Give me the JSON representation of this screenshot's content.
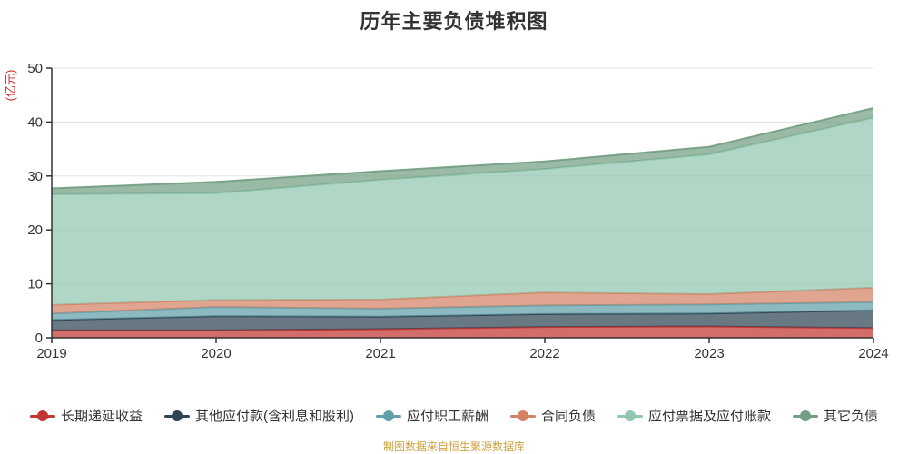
{
  "title": "历年主要负债堆积图",
  "footer": "制图数据来自恒生聚源数据库",
  "colors": {
    "axis": "#333333",
    "tick_label": "#333333",
    "grid": "#e0e0e0",
    "y_axis_name": "#d03030",
    "footer_text": "#cfa342",
    "background": "#ffffff"
  },
  "chart_data": {
    "type": "area",
    "stacked": true,
    "title": "历年主要负债堆积图",
    "x": [
      2019,
      2020,
      2021,
      2022,
      2023,
      2024
    ],
    "xtick_labels": [
      "2019",
      "2020",
      "2021",
      "2022",
      "2023",
      "2024"
    ],
    "series": [
      {
        "name": "长期递延收益",
        "color": "#c23531",
        "values": [
          1.4,
          1.4,
          1.6,
          2.0,
          2.1,
          1.8
        ]
      },
      {
        "name": "其他应付款(含利息和股利)",
        "color": "#2f4554",
        "values": [
          1.9,
          2.6,
          2.3,
          2.4,
          2.4,
          3.3
        ]
      },
      {
        "name": "应付职工薪酬",
        "color": "#61a0a8",
        "values": [
          1.2,
          1.7,
          1.5,
          1.6,
          1.7,
          1.5
        ]
      },
      {
        "name": "合同负债",
        "color": "#d48265",
        "values": [
          1.6,
          1.3,
          1.7,
          2.4,
          1.9,
          2.7
        ]
      },
      {
        "name": "应付票据及应付账款",
        "color": "#91c7ae",
        "values": [
          20.5,
          19.8,
          22.2,
          22.9,
          25.9,
          31.5
        ]
      },
      {
        "name": "其它负债",
        "color": "#749f83",
        "values": [
          1.1,
          2.1,
          1.6,
          1.4,
          1.4,
          1.8
        ]
      }
    ],
    "stacked_totals": [
      27.5,
      28.9,
      30.9,
      32.7,
      35.5,
      42.6
    ],
    "xlabel": "",
    "ylabel": "(亿元)",
    "ylim": [
      0,
      50
    ],
    "yticks": [
      0,
      10,
      20,
      30,
      40,
      50
    ],
    "grid": true,
    "legend_position": "bottom",
    "area_opacity": 0.72
  }
}
